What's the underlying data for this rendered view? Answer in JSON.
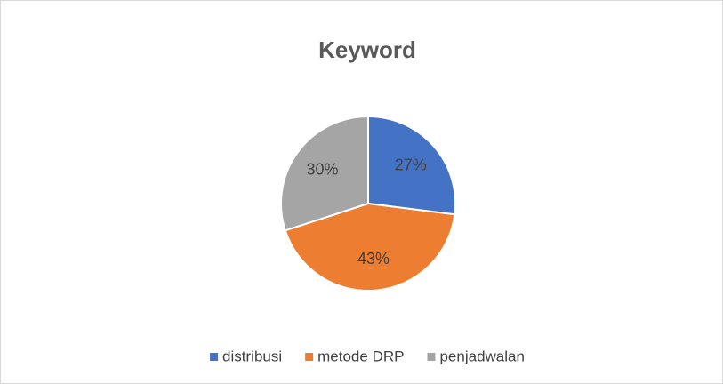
{
  "chart_data": {
    "type": "pie",
    "title": "Keyword",
    "categories": [
      "distribusi",
      "metode DRP",
      "penjadwalan"
    ],
    "values": [
      27,
      43,
      30
    ],
    "value_labels": [
      "27%",
      "43%",
      "30%"
    ],
    "colors": [
      "#4472c4",
      "#ed7d31",
      "#a5a5a5"
    ],
    "legend": "bottom"
  }
}
